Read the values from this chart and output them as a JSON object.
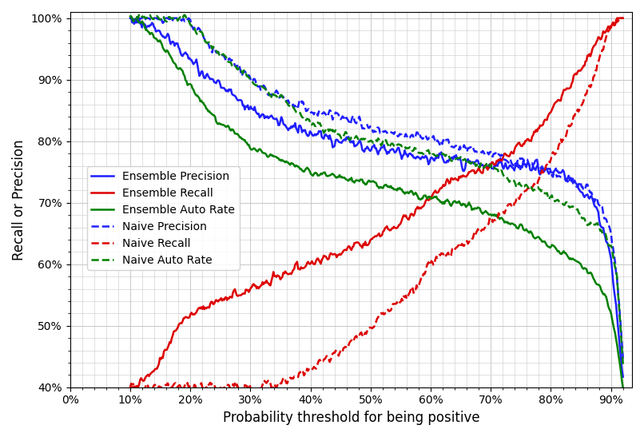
{
  "title": "",
  "xlabel": "Probability threshold for being positive",
  "ylabel": "Recall or Precision",
  "xlim": [
    0.0,
    0.935
  ],
  "ylim": [
    0.4,
    1.01
  ],
  "xticks": [
    0.0,
    0.1,
    0.2,
    0.3,
    0.4,
    0.5,
    0.6,
    0.7,
    0.8,
    0.9
  ],
  "yticks": [
    0.4,
    0.5,
    0.6,
    0.7,
    0.8,
    0.9,
    1.0
  ],
  "colors": {
    "blue": "#1f1fff",
    "red": "#dd0000",
    "green": "#008000"
  },
  "grid_color": "#c8c8c8",
  "background_color": "#ffffff",
  "line_width": 1.8
}
